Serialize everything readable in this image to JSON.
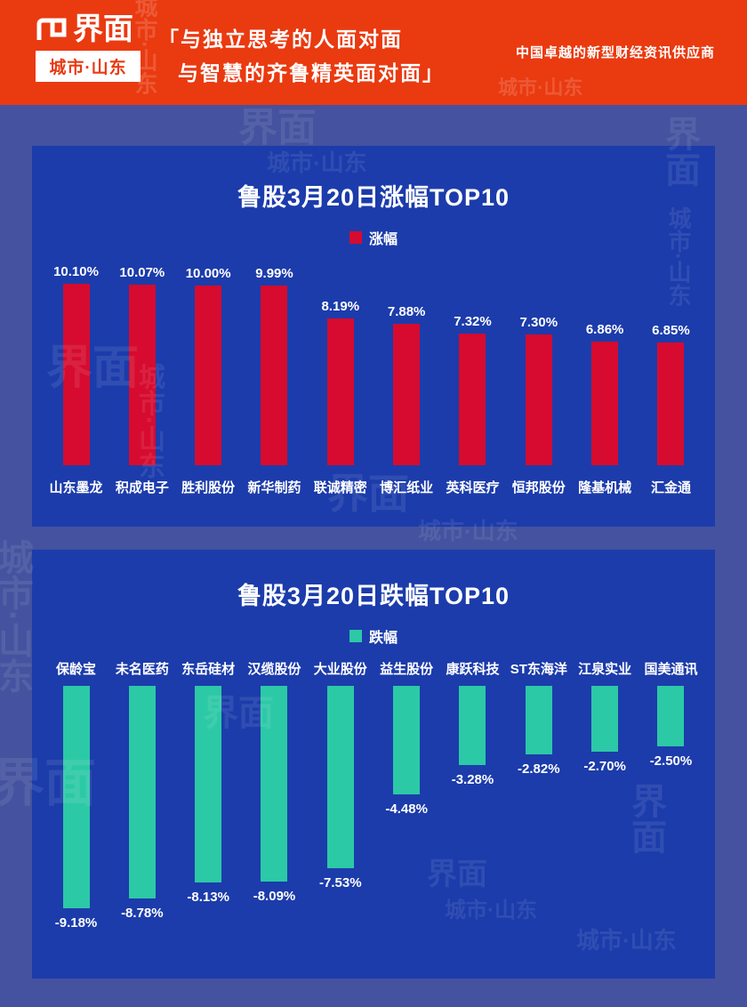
{
  "header": {
    "logo": "界面",
    "logo_badge": "城市·山东",
    "quote_line1": "「与独立思考的人面对面",
    "quote_line2": "与智慧的齐鲁精英面对面」",
    "tagline": "中国卓越的新型财经资讯供应商"
  },
  "watermark": {
    "brand": "界面",
    "city": "城市·山东"
  },
  "colors": {
    "header_bg": "#ea3a10",
    "page_bg": "#44529f",
    "card_bg": "#1c3cab",
    "gain_bar": "#d60b2f",
    "loss_bar": "#2cc9a6"
  },
  "chart_data": [
    {
      "type": "bar",
      "title": "鲁股3月20日涨幅TOP10",
      "legend": "涨幅",
      "legend_position": "top",
      "bar_color": "#d60b2f",
      "direction": "up",
      "categories": [
        "山东墨龙",
        "积成电子",
        "胜利股份",
        "新华制药",
        "联诚精密",
        "博汇纸业",
        "英科医疗",
        "恒邦股份",
        "隆基机械",
        "汇金通"
      ],
      "values": [
        10.1,
        10.07,
        10.0,
        9.99,
        8.19,
        7.88,
        7.32,
        7.3,
        6.86,
        6.85
      ],
      "labels": [
        "10.10%",
        "10.07%",
        "10.00%",
        "9.99%",
        "8.19%",
        "7.88%",
        "7.32%",
        "7.30%",
        "6.86%",
        "6.85%"
      ],
      "xlabel": "",
      "ylabel": "",
      "ylim": [
        0,
        10.1
      ],
      "grid": false
    },
    {
      "type": "bar",
      "title": "鲁股3月20日跌幅TOP10",
      "legend": "跌幅",
      "legend_position": "top",
      "bar_color": "#2cc9a6",
      "direction": "down",
      "categories": [
        "保龄宝",
        "未名医药",
        "东岳硅材",
        "汉缆股份",
        "大业股份",
        "益生股份",
        "康跃科技",
        "ST东海洋",
        "江泉实业",
        "国美通讯"
      ],
      "values": [
        -9.18,
        -8.78,
        -8.13,
        -8.09,
        -7.53,
        -4.48,
        -3.28,
        -2.82,
        -2.7,
        -2.5
      ],
      "labels": [
        "-9.18%",
        "-8.78%",
        "-8.13%",
        "-8.09%",
        "-7.53%",
        "-4.48%",
        "-3.28%",
        "-2.82%",
        "-2.70%",
        "-2.50%"
      ],
      "xlabel": "",
      "ylabel": "",
      "ylim": [
        -9.2,
        0
      ],
      "grid": false
    }
  ]
}
